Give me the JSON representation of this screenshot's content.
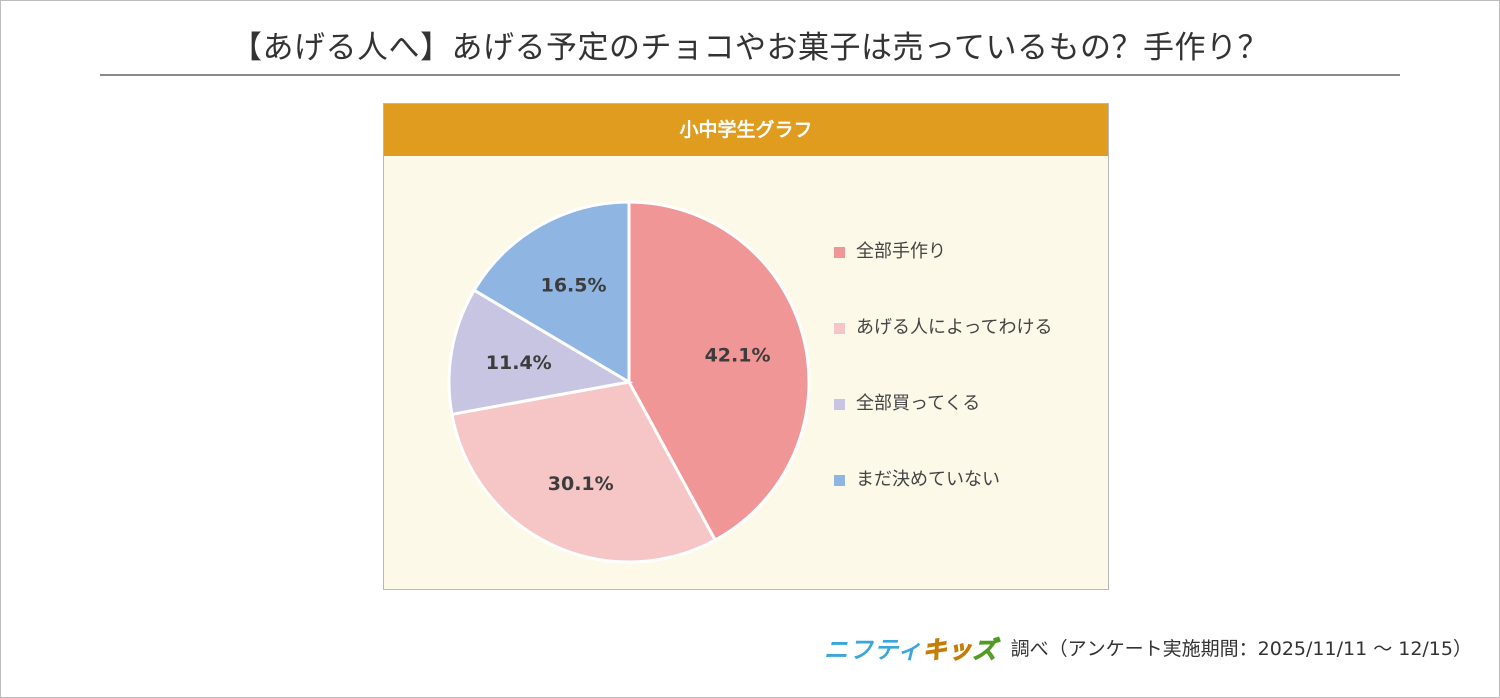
{
  "title": "【あげる人へ】あげる予定のチョコやお菓子は売っているもの？手作り？",
  "panel": {
    "header": "小中学生グラフ"
  },
  "chart_data": {
    "type": "pie",
    "categories": [
      "全部手作り",
      "あげる人によってわける",
      "全部買ってくる",
      "まだ決めていない"
    ],
    "values": [
      42.1,
      30.1,
      11.4,
      16.5
    ],
    "value_labels": [
      "42.1%",
      "30.1%",
      "11.4%",
      "16.5%"
    ],
    "colors": [
      "#f09696",
      "#f6c6c6",
      "#c7c5e2",
      "#8fb6e2"
    ],
    "legend_position": "right",
    "start_angle": "12 o'clock",
    "direction": "clockwise"
  },
  "footer": {
    "logo": {
      "part1": "ニフティ",
      "part2": "キッ",
      "part3": "ズ"
    },
    "source": "調べ（アンケート実施期間：2025/11/11 〜 12/15）"
  }
}
